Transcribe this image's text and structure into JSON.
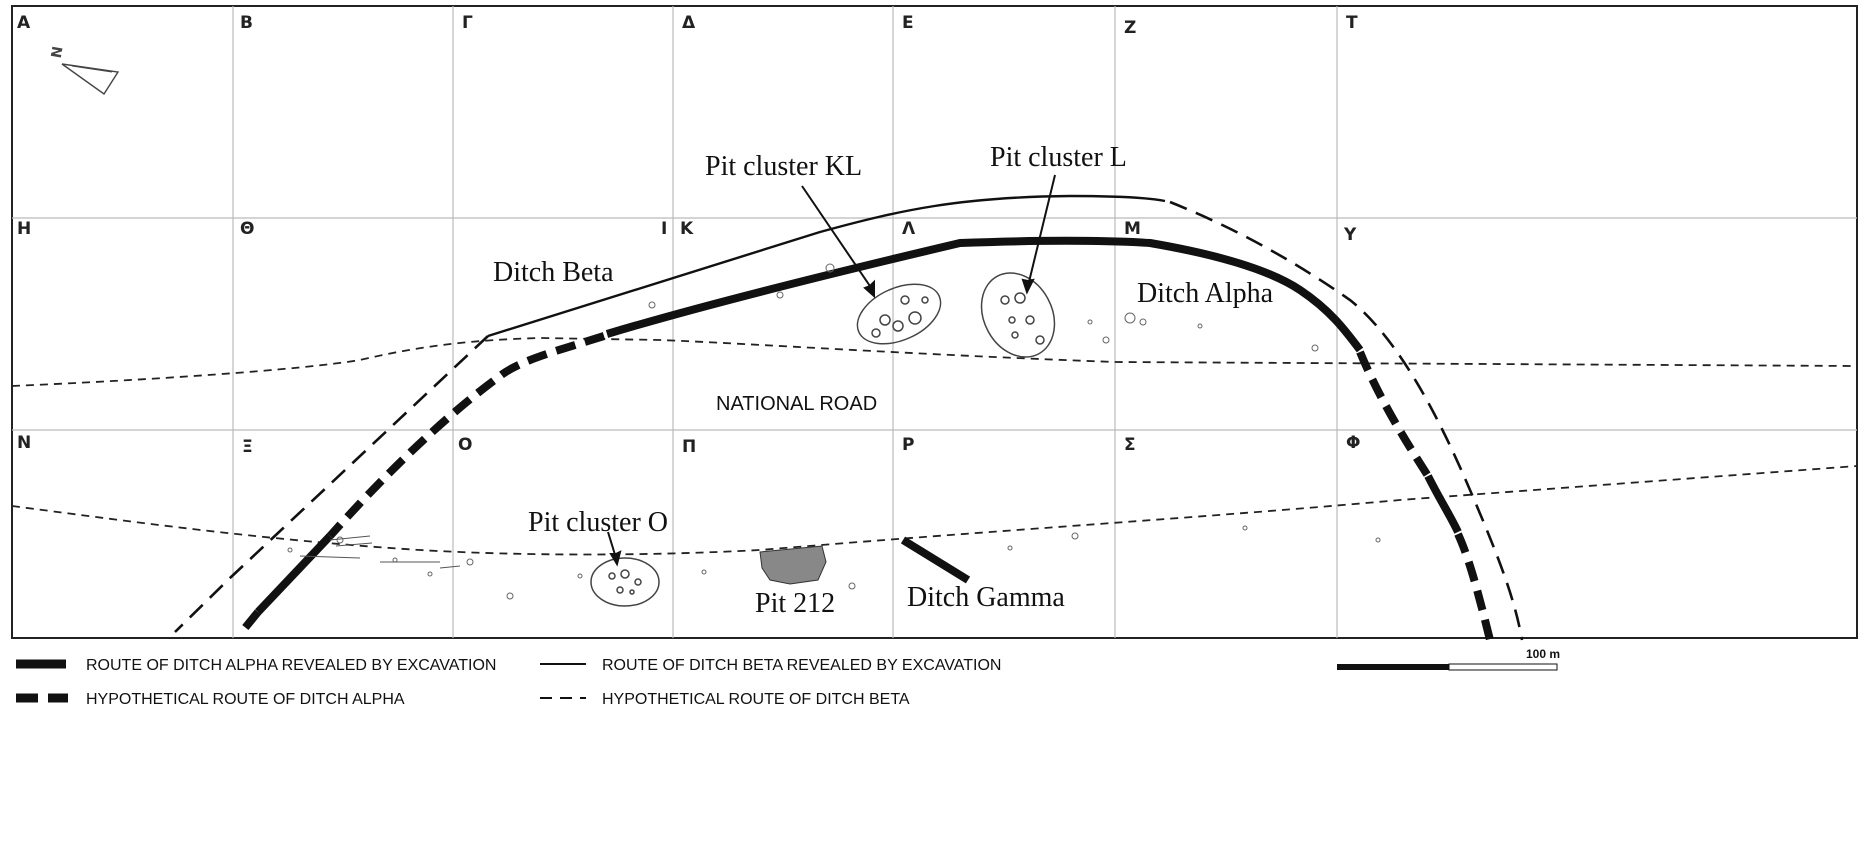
{
  "grid": {
    "row1": [
      "A",
      "B",
      "Γ",
      "Δ",
      "E",
      "Z",
      "T"
    ],
    "row2": [
      "H",
      "Θ",
      "I",
      "K",
      "Λ",
      "M",
      "Y"
    ],
    "row3": [
      "N",
      "Ξ",
      "O",
      "Π",
      "P",
      "Σ",
      "Φ"
    ]
  },
  "north_arrow": {
    "letter": "N"
  },
  "labels": {
    "national_road": "NATIONAL ROAD",
    "ditch_beta": "Ditch Beta",
    "ditch_alpha": "Ditch Alpha",
    "ditch_gamma": "Ditch Gamma",
    "pit_cluster_kl": "Pit cluster KL",
    "pit_cluster_l": "Pit cluster L",
    "pit_cluster_o": "Pit cluster O",
    "pit_212": "Pit 212"
  },
  "legend": [
    {
      "key": "alpha_excavated",
      "label": "ROUTE OF DITCH ALPHA REVEALED BY EXCAVATION"
    },
    {
      "key": "alpha_hypothetical",
      "label": "HYPOTHETICAL ROUTE OF DITCH ALPHA"
    },
    {
      "key": "beta_excavated",
      "label": "ROUTE OF DITCH BETA REVEALED BY EXCAVATION"
    },
    {
      "key": "beta_hypothetical",
      "label": "HYPOTHETICAL ROUTE OF DITCH BETA"
    }
  ],
  "scale_bar": {
    "label": "100 m"
  },
  "colors": {
    "ink": "#111111",
    "grid": "#bbbbbb",
    "frame": "#222222"
  }
}
